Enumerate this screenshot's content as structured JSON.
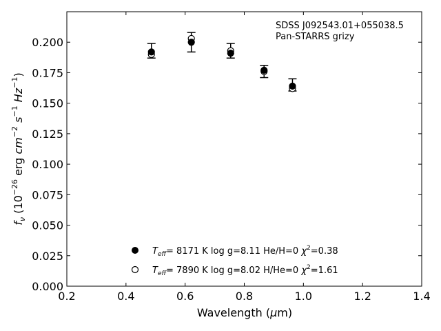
{
  "chart_data": {
    "type": "scatter",
    "annotation_lines": [
      "SDSS J092543.01+055038.5",
      "Pan-STARRS grizy"
    ],
    "xlabel_pre": "Wavelength (",
    "xlabel_sym": "μ",
    "xlabel_post": "m)",
    "ylabel": "f_ν (10^−26 erg cm^−2 s^−1 Hz^−1)",
    "xlim": [
      0.2,
      1.4
    ],
    "ylim": [
      0.0,
      0.225
    ],
    "xticks": [
      0.2,
      0.4,
      0.6,
      0.8,
      1.0,
      1.2,
      1.4
    ],
    "xtick_labels": [
      "0.2",
      "0.4",
      "0.6",
      "0.8",
      "1.0",
      "1.2",
      "1.4"
    ],
    "yticks": [
      0.0,
      0.025,
      0.05,
      0.075,
      0.1,
      0.125,
      0.15,
      0.175,
      0.2
    ],
    "ytick_labels": [
      "0.000",
      "0.025",
      "0.050",
      "0.075",
      "0.100",
      "0.125",
      "0.150",
      "0.175",
      "0.200"
    ],
    "grid": false,
    "legend_placement": "lower-center",
    "observed": {
      "x": [
        0.486,
        0.621,
        0.754,
        0.867,
        0.963
      ],
      "y": [
        0.193,
        0.2,
        0.193,
        0.176,
        0.165
      ],
      "yerr": [
        0.006,
        0.008,
        0.006,
        0.005,
        0.005
      ]
    },
    "series": [
      {
        "marker": "filled",
        "teff_label": "T_eff=",
        "teff": "8171 K",
        "logg": "log g=8.11",
        "comp": "He/H=0",
        "chi2": "=0.38",
        "x": [
          0.486,
          0.621,
          0.754,
          0.867,
          0.963
        ],
        "y": [
          0.192,
          0.2,
          0.191,
          0.177,
          0.164
        ]
      },
      {
        "marker": "open",
        "teff_label": "T_eff=",
        "teff": "7890 K",
        "logg": "log g=8.02",
        "comp": "H/He=0",
        "chi2": "=1.61",
        "x": [
          0.486,
          0.621,
          0.754,
          0.867,
          0.963
        ],
        "y": [
          0.19,
          0.203,
          0.193,
          0.176,
          0.162
        ]
      }
    ]
  }
}
